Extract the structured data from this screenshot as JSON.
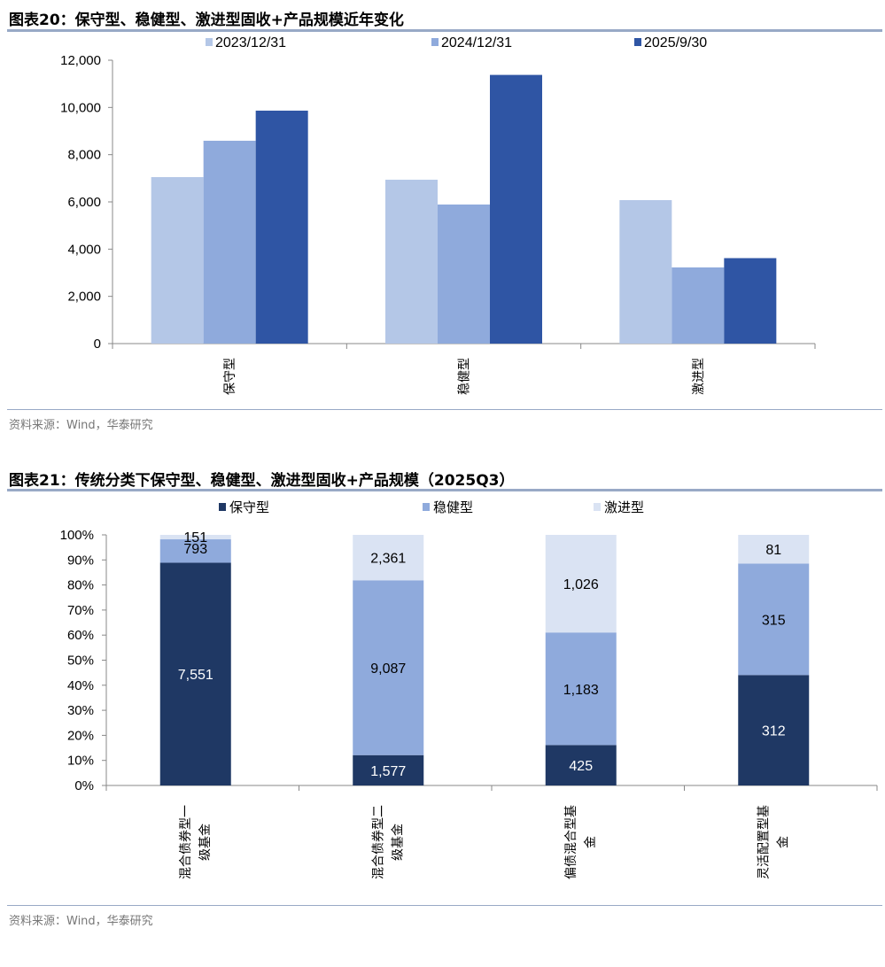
{
  "chart_data": [
    {
      "type": "bar",
      "title": "图表20：保守型、稳健型、激进型固收+产品规模近年变化",
      "categories": [
        "保守型",
        "稳健型",
        "激进型"
      ],
      "series": [
        {
          "name": "2023/12/31",
          "color": "#b4c7e7",
          "values": [
            7050,
            6940,
            6075
          ]
        },
        {
          "name": "2024/12/31",
          "color": "#8faadc",
          "values": [
            8590,
            5890,
            3225
          ]
        },
        {
          "name": "2025/9/30",
          "color": "#2f55a4",
          "values": [
            9865,
            11378,
            3619
          ]
        }
      ],
      "ylim": [
        0,
        12000
      ],
      "yticks": [
        "0",
        "2,000",
        "4,000",
        "6,000",
        "8,000",
        "10,000",
        "12,000"
      ],
      "legend": "top",
      "source": "资料来源：Wind，华泰研究"
    },
    {
      "type": "bar",
      "stacked": "percent",
      "title": "图表21：传统分类下保守型、稳健型、激进型固收+产品规模（2025Q3）",
      "categories": [
        [
          "混合债券型一",
          "级基金"
        ],
        [
          "混合债券型二",
          "级基金"
        ],
        [
          "偏债混合型基",
          "金"
        ],
        [
          "灵活配置型基",
          "金"
        ]
      ],
      "series": [
        {
          "name": "保守型",
          "color": "#1f3864",
          "label_color": "#ffffff",
          "values": [
            7551,
            1577,
            425,
            312
          ],
          "labels": [
            "7,551",
            "1,577",
            "425",
            "312"
          ]
        },
        {
          "name": "稳健型",
          "color": "#8faadc",
          "label_color": "#000000",
          "values": [
            793,
            9087,
            1183,
            315
          ],
          "labels": [
            "793",
            "9,087",
            "1,183",
            "315"
          ]
        },
        {
          "name": "激进型",
          "color": "#dae3f3",
          "label_color": "#000000",
          "values": [
            151,
            2361,
            1026,
            81
          ],
          "labels": [
            "151",
            "2,361",
            "1,026",
            "81"
          ]
        }
      ],
      "ylim": [
        0,
        100
      ],
      "yticks": [
        "0%",
        "10%",
        "20%",
        "30%",
        "40%",
        "50%",
        "60%",
        "70%",
        "80%",
        "90%",
        "100%"
      ],
      "legend": "top",
      "source": "资料来源：Wind，华泰研究"
    }
  ]
}
